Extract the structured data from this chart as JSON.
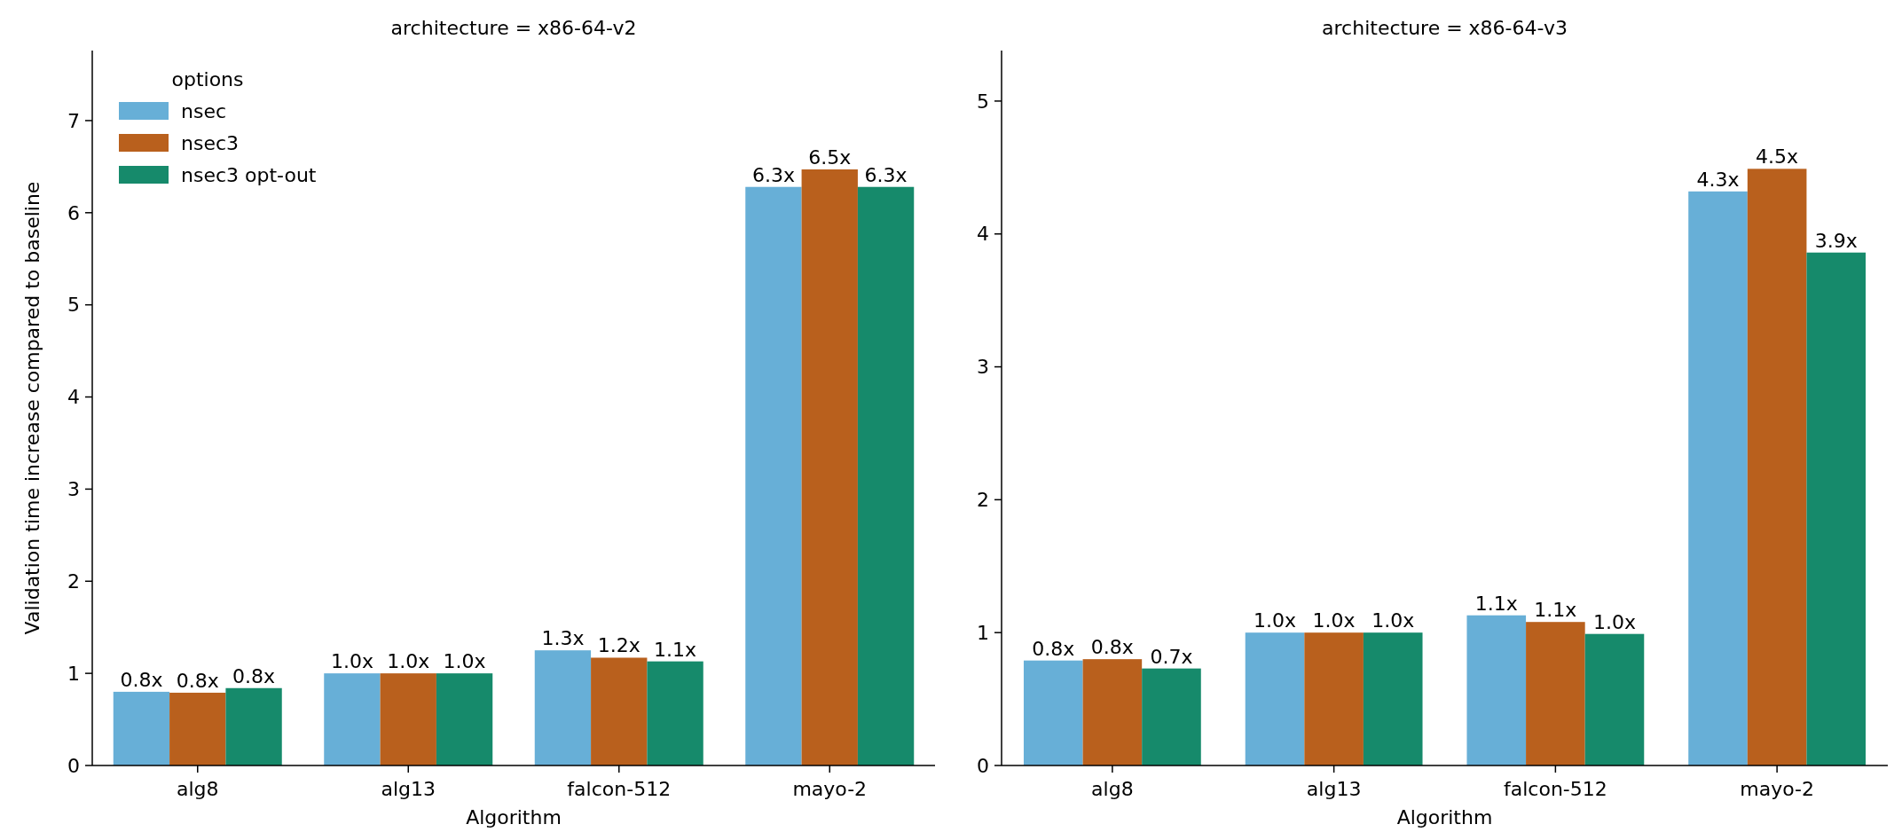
{
  "chart_data": [
    {
      "type": "bar",
      "title": "architecture = x86-64-v2",
      "xlabel": "Algorithm",
      "ylabel": "Validation time increase compared to baseline",
      "categories": [
        "alg8",
        "alg13",
        "falcon-512",
        "mayo-2"
      ],
      "ylim": [
        0,
        7.76
      ],
      "yticks": [
        0,
        1,
        2,
        3,
        4,
        5,
        6,
        7
      ],
      "legend": "top left",
      "legend_title": "options",
      "series": [
        {
          "name": "nsec",
          "color": "#67afd7",
          "values": [
            0.8,
            1.0,
            1.25,
            6.28
          ],
          "value_labels": [
            "0.8x",
            "1.0x",
            "1.3x",
            "6.3x"
          ]
        },
        {
          "name": "nsec3",
          "color": "#b9601d",
          "values": [
            0.79,
            1.0,
            1.17,
            6.47
          ],
          "value_labels": [
            "0.8x",
            "1.0x",
            "1.2x",
            "6.5x"
          ]
        },
        {
          "name": "nsec3 opt-out",
          "color": "#168a6b",
          "values": [
            0.84,
            1.0,
            1.13,
            6.28
          ],
          "value_labels": [
            "0.8x",
            "1.0x",
            "1.1x",
            "6.3x"
          ]
        }
      ]
    },
    {
      "type": "bar",
      "title": "architecture = x86-64-v3",
      "xlabel": "Algorithm",
      "categories": [
        "alg8",
        "alg13",
        "falcon-512",
        "mayo-2"
      ],
      "ylim": [
        0,
        5.38
      ],
      "yticks": [
        0,
        1,
        2,
        3,
        4,
        5
      ],
      "series": [
        {
          "color": "#67afd7",
          "values": [
            0.79,
            1.0,
            1.13,
            4.32
          ],
          "value_labels": [
            "0.8x",
            "1.0x",
            "1.1x",
            "4.3x"
          ]
        },
        {
          "color": "#b9601d",
          "values": [
            0.8,
            1.0,
            1.08,
            4.49
          ],
          "value_labels": [
            "0.8x",
            "1.0x",
            "1.1x",
            "4.5x"
          ]
        },
        {
          "color": "#168a6b",
          "values": [
            0.73,
            1.0,
            0.99,
            3.86
          ],
          "value_labels": [
            "0.7x",
            "1.0x",
            "1.0x",
            "3.9x"
          ]
        }
      ]
    }
  ]
}
